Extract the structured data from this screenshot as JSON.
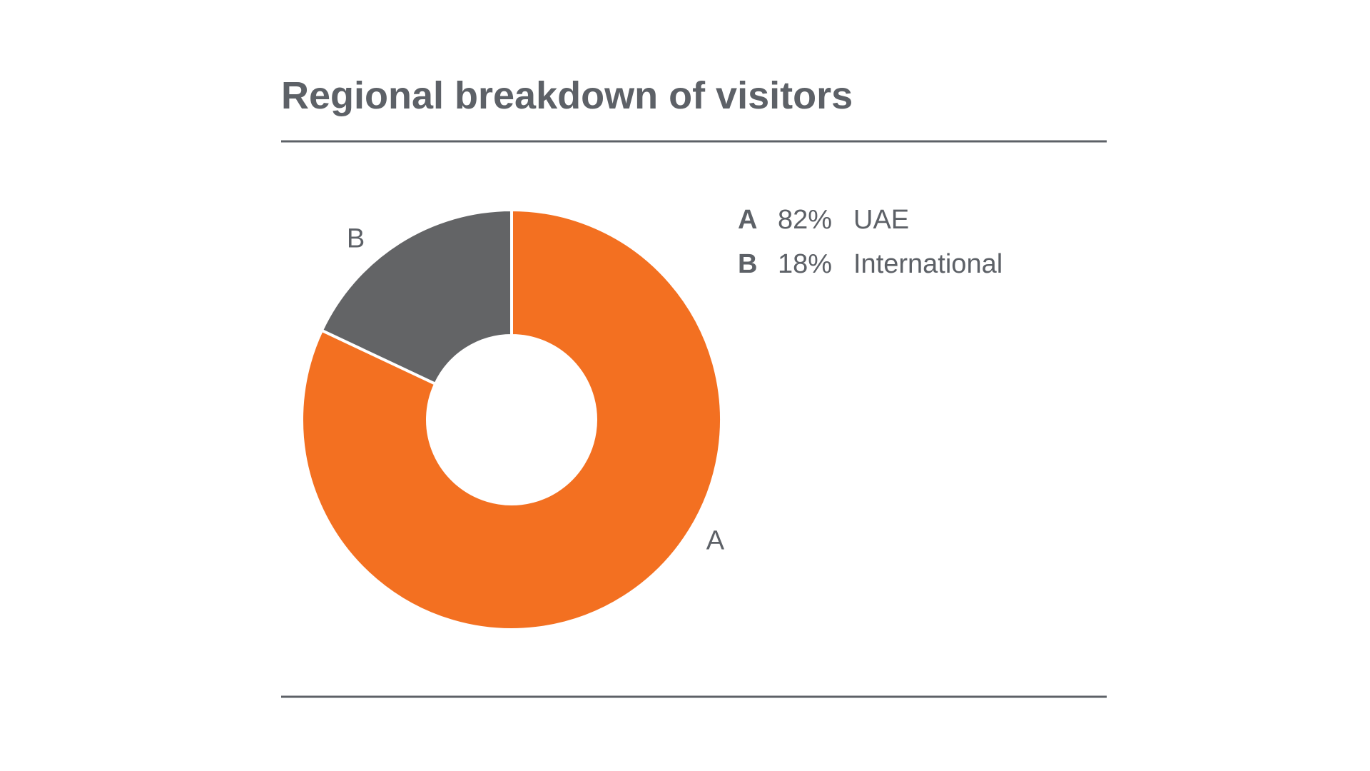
{
  "chart_data": {
    "type": "donut",
    "title": "Regional breakdown of visitors",
    "labels": [
      "A",
      "B"
    ],
    "categories": [
      "UAE",
      "International"
    ],
    "values": [
      82,
      18
    ],
    "value_labels": [
      "82%",
      "18%"
    ],
    "colors": [
      "#f37021",
      "#636466"
    ]
  }
}
